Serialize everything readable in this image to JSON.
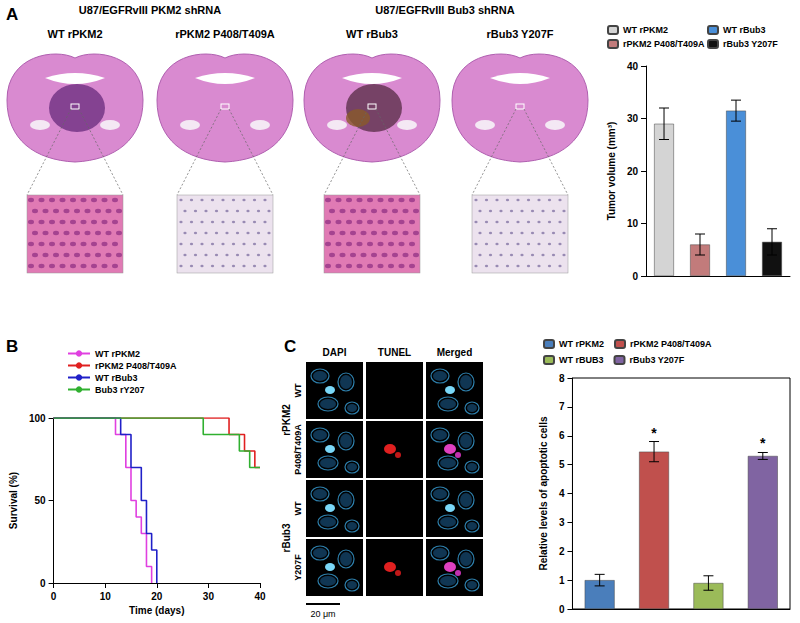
{
  "figure": {
    "panel_labels": [
      "A",
      "B",
      "C"
    ],
    "panel_a": {
      "group_titles": [
        "U87/EGFRvIII PKM2 shRNA",
        "U87/EGFRvIII Bub3 shRNA"
      ],
      "image_titles": [
        "WT rPKM2",
        "rPKM2 P408/T409A",
        "WT rBub3",
        "rBub3 Y207F"
      ]
    },
    "panel_c": {
      "column_titles": [
        "DAPI",
        "TUNEL",
        "Merged"
      ],
      "row_groups": [
        "rPKM2",
        "rBub3"
      ],
      "row_labels": [
        "WT",
        "P408/T409A",
        "WT",
        "Y207F"
      ],
      "scale_bar": "20 μm"
    }
  },
  "chart_data": [
    {
      "type": "bar",
      "y_label": "Tumor volume (mm³)",
      "categories": [
        "WT rPKM2",
        "rPKM2 P408/T409A",
        "WT rBub3",
        "rBub3 Y207F"
      ],
      "values": [
        29,
        6,
        31.5,
        6.5
      ],
      "errors": [
        3,
        2,
        2,
        2.5
      ],
      "colors": [
        "#d4d4d4",
        "#c27b7b",
        "#4a8fd8",
        "#111111"
      ],
      "ylim": [
        0,
        40
      ],
      "yticks": [
        0,
        10,
        20,
        30,
        40
      ],
      "grid": false,
      "legend": "top",
      "tick_labels": "y"
    },
    {
      "type": "line",
      "x_label": "Time (days)",
      "y_label": "Survival (%)",
      "xlim": [
        0,
        40
      ],
      "xticks": [
        0,
        10,
        20,
        30,
        40
      ],
      "ylim": [
        0,
        100
      ],
      "yticks": [
        0,
        50,
        100
      ],
      "grid": false,
      "legend": "top",
      "series": [
        {
          "name": "WT rPKM2",
          "color": "#e040e0",
          "x": [
            0,
            12,
            14,
            15,
            16,
            17,
            18,
            19
          ],
          "values": [
            100,
            90,
            70,
            50,
            40,
            30,
            10,
            0
          ]
        },
        {
          "name": "rPKM2 P408/T409A",
          "color": "#e02020",
          "x": [
            0,
            34,
            37,
            39,
            40
          ],
          "values": [
            100,
            90,
            80,
            70,
            70
          ]
        },
        {
          "name": "WT rBub3",
          "color": "#2020c8",
          "x": [
            0,
            13,
            15,
            17,
            18,
            19,
            20
          ],
          "values": [
            100,
            90,
            70,
            50,
            30,
            20,
            0
          ]
        },
        {
          "name": "Bub3 rY207",
          "color": "#30b030",
          "x": [
            0,
            29,
            36,
            38,
            40
          ],
          "values": [
            100,
            90,
            80,
            70,
            70
          ]
        }
      ]
    },
    {
      "type": "bar",
      "y_label": "Relative levels of apoptotic cells",
      "categories": [
        "WT rPKM2",
        "rPKM2 P408/T409A",
        "WT rBUB3",
        "rBub3 Y207F"
      ],
      "values": [
        1.0,
        5.45,
        0.9,
        5.3
      ],
      "errors": [
        0.2,
        0.35,
        0.25,
        0.12
      ],
      "colors": [
        "#4a7ebb",
        "#c0504d",
        "#9bbb59",
        "#8064a2"
      ],
      "ylim": [
        0,
        8
      ],
      "yticks": [
        0,
        1,
        2,
        3,
        4,
        5,
        6,
        7,
        8
      ],
      "grid": false,
      "legend": "top",
      "tick_labels": "y",
      "annotations": [
        {
          "category": "rPKM2 P408/T409A",
          "text": "*"
        },
        {
          "category": "rBub3 Y207F",
          "text": "*"
        }
      ]
    }
  ]
}
